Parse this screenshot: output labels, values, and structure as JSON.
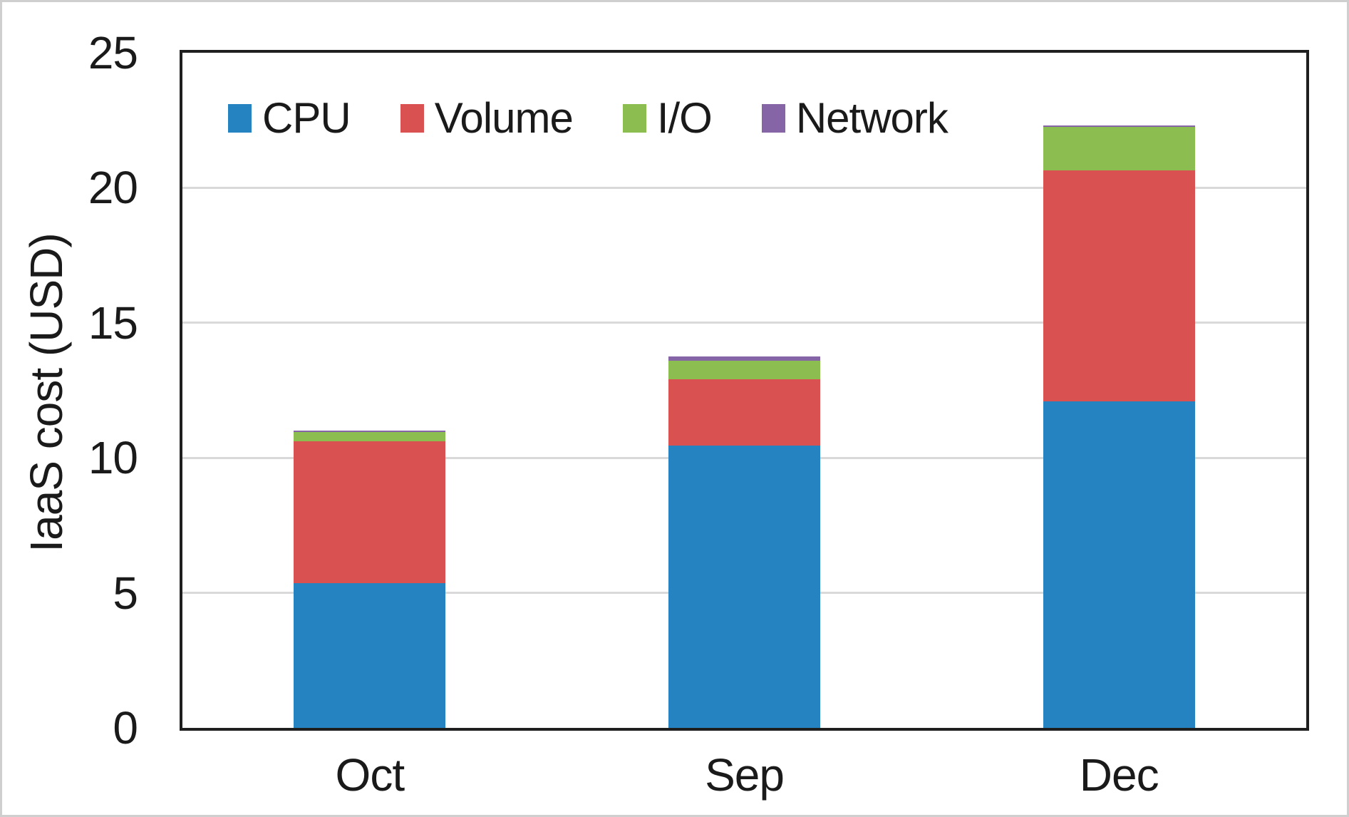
{
  "chart_data": {
    "type": "bar",
    "stacked": true,
    "title": "",
    "xlabel": "",
    "ylabel": "IaaS cost (USD)",
    "categories": [
      "Oct",
      "Sep",
      "Dec"
    ],
    "series": [
      {
        "name": "CPU",
        "color": "#2583c1",
        "values": [
          5.35,
          10.45,
          12.1
        ]
      },
      {
        "name": "Volume",
        "color": "#d95151",
        "values": [
          5.25,
          2.45,
          8.55
        ]
      },
      {
        "name": "I/O",
        "color": "#8cbd51",
        "values": [
          0.35,
          0.7,
          1.6
        ]
      },
      {
        "name": "Network",
        "color": "#8565a6",
        "values": [
          0.05,
          0.15,
          0.05
        ]
      }
    ],
    "totals": [
      11.0,
      13.75,
      22.3
    ],
    "ylim": [
      0,
      25
    ],
    "yticks": [
      0,
      5,
      10,
      15,
      20,
      25
    ],
    "grid": "horizontal",
    "gridline_color": "#d9d9d9",
    "axis_color": "#1f1f1f",
    "legend_position": "top-inside",
    "legend_labels": [
      "CPU",
      "Volume",
      "I/O",
      "Network"
    ]
  }
}
